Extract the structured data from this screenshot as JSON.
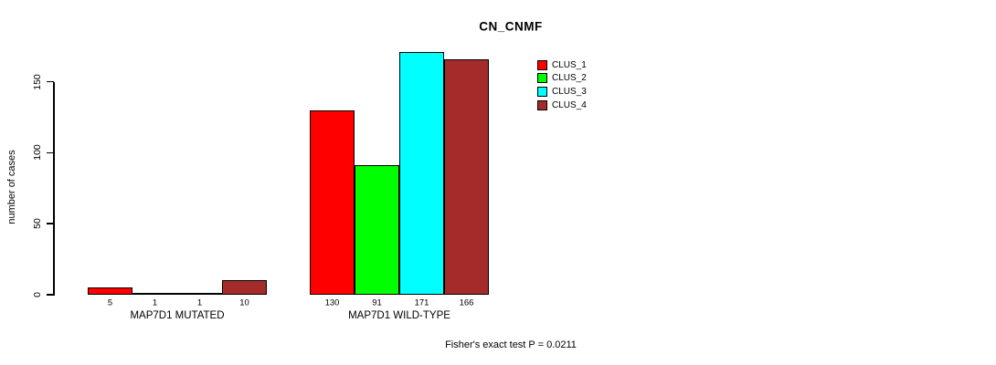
{
  "title": "CN_CNMF",
  "chart_data": {
    "type": "bar",
    "title": "CN_CNMF",
    "ylabel": "number of cases",
    "xlabel": "",
    "y_ticks": [
      0,
      50,
      100,
      150
    ],
    "ylim": [
      0,
      175
    ],
    "grid": false,
    "legend_position": "top-right",
    "categories": [
      "MAP7D1 MUTATED",
      "MAP7D1 WILD-TYPE"
    ],
    "series": [
      {
        "name": "CLUS_1",
        "color": "#FF0000",
        "values": [
          5,
          130
        ]
      },
      {
        "name": "CLUS_2",
        "color": "#00FF00",
        "values": [
          1,
          91
        ]
      },
      {
        "name": "CLUS_3",
        "color": "#00FFFF",
        "values": [
          1,
          171
        ]
      },
      {
        "name": "CLUS_4",
        "color": "#A52A2A",
        "values": [
          10,
          166
        ]
      }
    ],
    "bar_value_labels": [
      [
        5,
        1,
        1,
        10
      ],
      [
        130,
        91,
        171,
        166
      ]
    ],
    "annotation": "Fisher's exact test P = 0.0211"
  },
  "colors": {
    "axis": "#000000",
    "background": "#FFFFFF"
  }
}
